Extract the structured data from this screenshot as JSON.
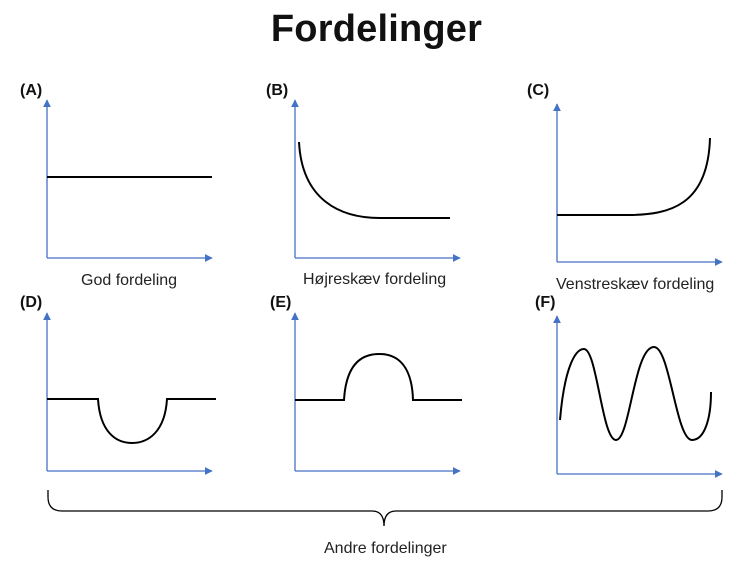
{
  "title": "Fordelinger",
  "panels": [
    {
      "label": "(A)",
      "caption": "God fordeling"
    },
    {
      "label": "(B)",
      "caption": "Højreskæv fordeling"
    },
    {
      "label": "(C)",
      "caption": "Venstreskæv fordeling"
    },
    {
      "label": "(D)",
      "caption": ""
    },
    {
      "label": "(E)",
      "caption": ""
    },
    {
      "label": "(F)",
      "caption": ""
    }
  ],
  "group_caption": "Andre fordelinger",
  "colors": {
    "axis": "#4472c4",
    "curve": "#000000",
    "text": "#222222"
  }
}
